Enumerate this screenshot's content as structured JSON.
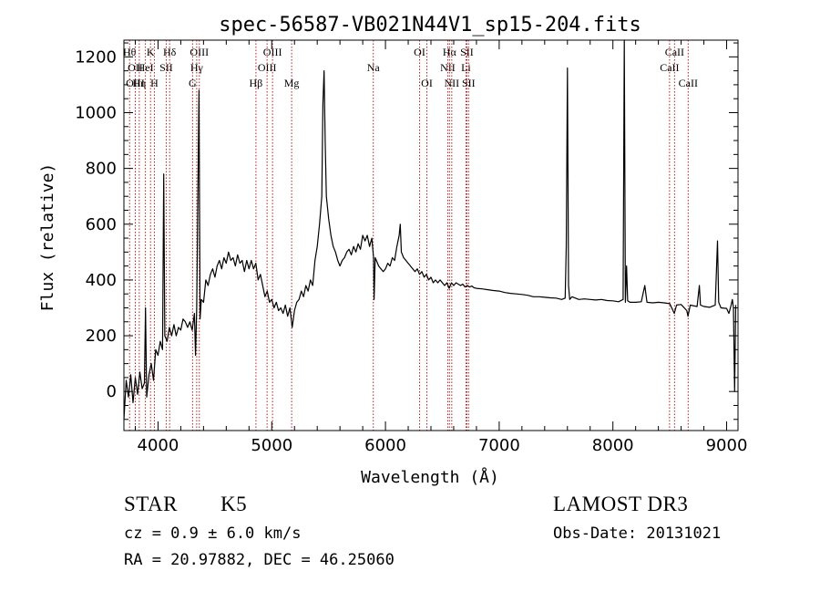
{
  "chart_data": {
    "type": "line",
    "title": "spec-56587-VB021N44V1_sp15-204.fits",
    "xlabel": "Wavelength (Å)",
    "ylabel": "Flux (relative)",
    "xlim": [
      3700,
      9100
    ],
    "ylim": [
      -140,
      1260
    ],
    "xticks": [
      4000,
      5000,
      6000,
      7000,
      8000,
      9000
    ],
    "yticks": [
      0,
      200,
      400,
      600,
      800,
      1000,
      1200
    ],
    "grid": false,
    "series": [
      {
        "points": [
          [
            3700,
            -100
          ],
          [
            3720,
            40
          ],
          [
            3740,
            -20
          ],
          [
            3760,
            60
          ],
          [
            3780,
            -40
          ],
          [
            3800,
            50
          ],
          [
            3820,
            -10
          ],
          [
            3840,
            70
          ],
          [
            3860,
            10
          ],
          [
            3880,
            30
          ],
          [
            3890,
            300
          ],
          [
            3900,
            -20
          ],
          [
            3920,
            60
          ],
          [
            3940,
            100
          ],
          [
            3960,
            40
          ],
          [
            3980,
            150
          ],
          [
            4000,
            130
          ],
          [
            4020,
            180
          ],
          [
            4040,
            150
          ],
          [
            4050,
            780
          ],
          [
            4060,
            200
          ],
          [
            4080,
            180
          ],
          [
            4100,
            230
          ],
          [
            4120,
            200
          ],
          [
            4140,
            240
          ],
          [
            4160,
            200
          ],
          [
            4180,
            230
          ],
          [
            4200,
            220
          ],
          [
            4220,
            260
          ],
          [
            4240,
            250
          ],
          [
            4260,
            230
          ],
          [
            4280,
            250
          ],
          [
            4300,
            220
          ],
          [
            4320,
            280
          ],
          [
            4330,
            130
          ],
          [
            4340,
            300
          ],
          [
            4360,
            1080
          ],
          [
            4370,
            260
          ],
          [
            4380,
            330
          ],
          [
            4400,
            320
          ],
          [
            4420,
            400
          ],
          [
            4440,
            380
          ],
          [
            4460,
            420
          ],
          [
            4480,
            440
          ],
          [
            4500,
            410
          ],
          [
            4520,
            450
          ],
          [
            4540,
            470
          ],
          [
            4560,
            440
          ],
          [
            4580,
            480
          ],
          [
            4600,
            460
          ],
          [
            4620,
            500
          ],
          [
            4640,
            470
          ],
          [
            4660,
            480
          ],
          [
            4680,
            450
          ],
          [
            4700,
            490
          ],
          [
            4720,
            460
          ],
          [
            4740,
            470
          ],
          [
            4760,
            430
          ],
          [
            4780,
            470
          ],
          [
            4800,
            440
          ],
          [
            4820,
            470
          ],
          [
            4840,
            440
          ],
          [
            4860,
            460
          ],
          [
            4880,
            400
          ],
          [
            4900,
            420
          ],
          [
            4920,
            380
          ],
          [
            4940,
            340
          ],
          [
            4960,
            360
          ],
          [
            4980,
            320
          ],
          [
            5000,
            330
          ],
          [
            5020,
            300
          ],
          [
            5040,
            320
          ],
          [
            5060,
            290
          ],
          [
            5080,
            300
          ],
          [
            5100,
            280
          ],
          [
            5120,
            310
          ],
          [
            5140,
            270
          ],
          [
            5160,
            300
          ],
          [
            5180,
            230
          ],
          [
            5200,
            290
          ],
          [
            5220,
            320
          ],
          [
            5240,
            330
          ],
          [
            5260,
            360
          ],
          [
            5280,
            340
          ],
          [
            5300,
            380
          ],
          [
            5320,
            360
          ],
          [
            5340,
            400
          ],
          [
            5360,
            380
          ],
          [
            5380,
            470
          ],
          [
            5400,
            520
          ],
          [
            5420,
            600
          ],
          [
            5440,
            700
          ],
          [
            5450,
            1030
          ],
          [
            5460,
            1150
          ],
          [
            5470,
            900
          ],
          [
            5480,
            700
          ],
          [
            5500,
            620
          ],
          [
            5520,
            560
          ],
          [
            5540,
            520
          ],
          [
            5560,
            500
          ],
          [
            5580,
            470
          ],
          [
            5600,
            450
          ],
          [
            5620,
            470
          ],
          [
            5640,
            480
          ],
          [
            5660,
            500
          ],
          [
            5680,
            510
          ],
          [
            5700,
            490
          ],
          [
            5720,
            520
          ],
          [
            5740,
            500
          ],
          [
            5760,
            530
          ],
          [
            5780,
            510
          ],
          [
            5800,
            560
          ],
          [
            5820,
            540
          ],
          [
            5840,
            560
          ],
          [
            5860,
            520
          ],
          [
            5880,
            550
          ],
          [
            5895,
            480
          ],
          [
            5900,
            330
          ],
          [
            5910,
            480
          ],
          [
            5920,
            470
          ],
          [
            5940,
            450
          ],
          [
            5960,
            440
          ],
          [
            5980,
            430
          ],
          [
            6000,
            440
          ],
          [
            6020,
            460
          ],
          [
            6040,
            450
          ],
          [
            6060,
            480
          ],
          [
            6080,
            470
          ],
          [
            6100,
            520
          ],
          [
            6120,
            560
          ],
          [
            6130,
            600
          ],
          [
            6140,
            500
          ],
          [
            6160,
            480
          ],
          [
            6180,
            470
          ],
          [
            6200,
            460
          ],
          [
            6220,
            450
          ],
          [
            6240,
            440
          ],
          [
            6260,
            430
          ],
          [
            6280,
            440
          ],
          [
            6300,
            420
          ],
          [
            6320,
            430
          ],
          [
            6340,
            410
          ],
          [
            6360,
            420
          ],
          [
            6380,
            400
          ],
          [
            6400,
            410
          ],
          [
            6420,
            390
          ],
          [
            6440,
            400
          ],
          [
            6460,
            390
          ],
          [
            6480,
            400
          ],
          [
            6500,
            390
          ],
          [
            6520,
            380
          ],
          [
            6540,
            390
          ],
          [
            6560,
            370
          ],
          [
            6580,
            390
          ],
          [
            6600,
            380
          ],
          [
            6620,
            390
          ],
          [
            6640,
            385
          ],
          [
            6660,
            380
          ],
          [
            6680,
            385
          ],
          [
            6700,
            375
          ],
          [
            6720,
            380
          ],
          [
            6740,
            375
          ],
          [
            6760,
            378
          ],
          [
            6780,
            372
          ],
          [
            6800,
            370
          ],
          [
            6850,
            368
          ],
          [
            6900,
            365
          ],
          [
            6950,
            362
          ],
          [
            7000,
            360
          ],
          [
            7050,
            355
          ],
          [
            7100,
            352
          ],
          [
            7150,
            350
          ],
          [
            7200,
            348
          ],
          [
            7250,
            345
          ],
          [
            7300,
            340
          ],
          [
            7350,
            340
          ],
          [
            7400,
            338
          ],
          [
            7450,
            336
          ],
          [
            7500,
            335
          ],
          [
            7550,
            330
          ],
          [
            7580,
            335
          ],
          [
            7590,
            520
          ],
          [
            7600,
            1160
          ],
          [
            7610,
            380
          ],
          [
            7620,
            330
          ],
          [
            7640,
            340
          ],
          [
            7700,
            330
          ],
          [
            7750,
            332
          ],
          [
            7800,
            330
          ],
          [
            7850,
            328
          ],
          [
            7900,
            330
          ],
          [
            7950,
            326
          ],
          [
            8000,
            325
          ],
          [
            8050,
            322
          ],
          [
            8090,
            330
          ],
          [
            8100,
            1260
          ],
          [
            8110,
            320
          ],
          [
            8120,
            450
          ],
          [
            8130,
            325
          ],
          [
            8150,
            320
          ],
          [
            8200,
            320
          ],
          [
            8250,
            322
          ],
          [
            8280,
            380
          ],
          [
            8300,
            320
          ],
          [
            8350,
            318
          ],
          [
            8400,
            320
          ],
          [
            8450,
            318
          ],
          [
            8500,
            315
          ],
          [
            8540,
            280
          ],
          [
            8560,
            310
          ],
          [
            8600,
            312
          ],
          [
            8650,
            290
          ],
          [
            8660,
            270
          ],
          [
            8680,
            310
          ],
          [
            8700,
            308
          ],
          [
            8740,
            305
          ],
          [
            8760,
            380
          ],
          [
            8770,
            310
          ],
          [
            8800,
            305
          ],
          [
            8850,
            302
          ],
          [
            8900,
            310
          ],
          [
            8920,
            540
          ],
          [
            8930,
            320
          ],
          [
            8950,
            300
          ],
          [
            9000,
            298
          ],
          [
            9020,
            280
          ],
          [
            9040,
            310
          ],
          [
            9050,
            330
          ],
          [
            9060,
            300
          ],
          [
            9070,
            0
          ],
          [
            9080,
            310
          ]
        ]
      }
    ],
    "line_marks": [
      {
        "x": 3750,
        "text": "Hθ",
        "row": 0
      },
      {
        "x": 3800,
        "text": "OII",
        "row": 1
      },
      {
        "x": 3800,
        "text": "OIII",
        "row": 2
      },
      {
        "x": 3835,
        "text": "Hη",
        "row": 2
      },
      {
        "x": 3889,
        "text": "HeI",
        "row": 1
      },
      {
        "x": 3934,
        "text": "K",
        "row": 0
      },
      {
        "x": 3968,
        "text": "H",
        "row": 2
      },
      {
        "x": 4072,
        "text": "SII",
        "row": 1
      },
      {
        "x": 4102,
        "text": "Hδ",
        "row": 0
      },
      {
        "x": 4304,
        "text": "G",
        "row": 2
      },
      {
        "x": 4340,
        "text": "Hγ",
        "row": 1
      },
      {
        "x": 4363,
        "text": "OIII",
        "row": 0
      },
      {
        "x": 4861,
        "text": "Hβ",
        "row": 2
      },
      {
        "x": 4959,
        "text": "OIII",
        "row": 1
      },
      {
        "x": 5007,
        "text": "OIII",
        "row": 0
      },
      {
        "x": 5175,
        "text": "Mg",
        "row": 2
      },
      {
        "x": 5893,
        "text": "Na",
        "row": 1
      },
      {
        "x": 6300,
        "text": "OI",
        "row": 0
      },
      {
        "x": 6364,
        "text": "OI",
        "row": 2
      },
      {
        "x": 6548,
        "text": "NII",
        "row": 1
      },
      {
        "x": 6563,
        "text": "Hα",
        "row": 0
      },
      {
        "x": 6583,
        "text": "NII",
        "row": 2
      },
      {
        "x": 6716,
        "text": "SII",
        "row": 0
      },
      {
        "x": 6708,
        "text": "Li",
        "row": 1
      },
      {
        "x": 6731,
        "text": "SII",
        "row": 2
      },
      {
        "x": 8498,
        "text": "CaII",
        "row": 1
      },
      {
        "x": 8542,
        "text": "CaII",
        "row": 0
      },
      {
        "x": 8662,
        "text": "CaII",
        "row": 2
      }
    ]
  },
  "info": {
    "class_label": "STAR",
    "subclass": "K5",
    "survey": "LAMOST DR3",
    "cz": "cz = 0.9 ± 6.0 km/s",
    "obs_date": "Obs-Date: 20131021",
    "coords": "RA =  20.97882, DEC =  46.25060"
  },
  "colors": {
    "line_marks": "#b22222",
    "spectrum": "#000000"
  }
}
